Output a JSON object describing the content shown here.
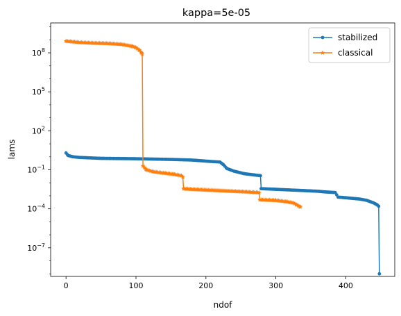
{
  "chart_data": {
    "type": "line",
    "title": "kappa=5e-05",
    "xlabel": "ndof",
    "ylabel": "lams",
    "xlim": [
      -22,
      470
    ],
    "ylim_log10": [
      -9.2,
      10.3
    ],
    "yscale": "log",
    "grid": false,
    "legend_position": "top-right",
    "x_ticks": [
      0,
      100,
      200,
      300,
      400
    ],
    "y_ticks": [
      {
        "base": "10",
        "exp": "8",
        "log10": 8
      },
      {
        "base": "10",
        "exp": "5",
        "log10": 5
      },
      {
        "base": "10",
        "exp": "2",
        "log10": 2
      },
      {
        "base": "10",
        "exp": "−1",
        "log10": -1
      },
      {
        "base": "10",
        "exp": "−4",
        "log10": -4
      },
      {
        "base": "10",
        "exp": "−7",
        "log10": -7
      }
    ],
    "series": [
      {
        "name": "stabilized",
        "color": "#1f77b4",
        "marker": "circle",
        "points_log10": [
          [
            0,
            0.3
          ],
          [
            3,
            0.1
          ],
          [
            10,
            0.0
          ],
          [
            20,
            -0.05
          ],
          [
            50,
            -0.12
          ],
          [
            100,
            -0.15
          ],
          [
            150,
            -0.2
          ],
          [
            180,
            -0.25
          ],
          [
            205,
            -0.35
          ],
          [
            220,
            -0.4
          ],
          [
            225,
            -0.6
          ],
          [
            230,
            -0.9
          ],
          [
            240,
            -1.1
          ],
          [
            255,
            -1.3
          ],
          [
            270,
            -1.4
          ],
          [
            278,
            -1.45
          ],
          [
            279,
            -2.45
          ],
          [
            300,
            -2.5
          ],
          [
            320,
            -2.55
          ],
          [
            340,
            -2.6
          ],
          [
            360,
            -2.65
          ],
          [
            370,
            -2.7
          ],
          [
            385,
            -2.75
          ],
          [
            389,
            -3.1
          ],
          [
            400,
            -3.15
          ],
          [
            420,
            -3.25
          ],
          [
            430,
            -3.35
          ],
          [
            440,
            -3.55
          ],
          [
            445,
            -3.7
          ],
          [
            447,
            -3.8
          ],
          [
            448,
            -9.0
          ]
        ]
      },
      {
        "name": "classical",
        "color": "#ff7f0e",
        "marker": "star",
        "points_log10": [
          [
            0,
            8.9
          ],
          [
            10,
            8.85
          ],
          [
            20,
            8.8
          ],
          [
            40,
            8.75
          ],
          [
            60,
            8.72
          ],
          [
            80,
            8.65
          ],
          [
            95,
            8.5
          ],
          [
            100,
            8.4
          ],
          [
            105,
            8.2
          ],
          [
            108,
            8.0
          ],
          [
            109,
            7.9
          ],
          [
            110,
            -0.7
          ],
          [
            115,
            -1.0
          ],
          [
            125,
            -1.15
          ],
          [
            140,
            -1.25
          ],
          [
            155,
            -1.35
          ],
          [
            165,
            -1.45
          ],
          [
            167,
            -1.55
          ],
          [
            168,
            -2.45
          ],
          [
            180,
            -2.5
          ],
          [
            200,
            -2.55
          ],
          [
            220,
            -2.6
          ],
          [
            240,
            -2.65
          ],
          [
            260,
            -2.7
          ],
          [
            276,
            -2.75
          ],
          [
            277,
            -3.3
          ],
          [
            300,
            -3.35
          ],
          [
            315,
            -3.45
          ],
          [
            325,
            -3.55
          ],
          [
            330,
            -3.7
          ],
          [
            335,
            -3.85
          ]
        ]
      }
    ]
  }
}
